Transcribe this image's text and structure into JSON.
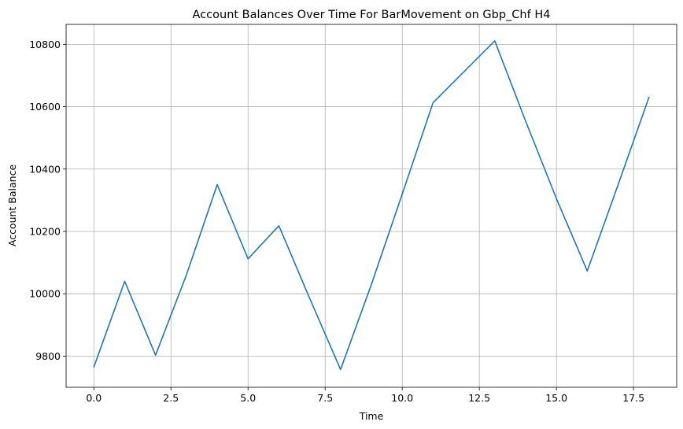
{
  "chart_data": {
    "type": "line",
    "title": "Account Balances Over Time For BarMovement on Gbp_Chf H4",
    "xlabel": "Time",
    "ylabel": "Account Balance",
    "xlim": [
      -0.9,
      18.9
    ],
    "ylim": [
      9700,
      10864
    ],
    "xticks": [
      0.0,
      2.5,
      5.0,
      7.5,
      10.0,
      12.5,
      15.0,
      17.5
    ],
    "xtick_labels": [
      "0.0",
      "2.5",
      "5.0",
      "7.5",
      "10.0",
      "12.5",
      "15.0",
      "17.5"
    ],
    "yticks": [
      9800,
      10000,
      10200,
      10400,
      10600,
      10800
    ],
    "ytick_labels": [
      "9800",
      "10000",
      "10200",
      "10400",
      "10600",
      "10800"
    ],
    "grid": true,
    "series": [
      {
        "color": "#1f77b4",
        "x": [
          0,
          1,
          2,
          3,
          4,
          5,
          6,
          7,
          8,
          9,
          10,
          11,
          12,
          13,
          14,
          15,
          16,
          17,
          18
        ],
        "y": [
          9765,
          10040,
          9803,
          10060,
          10350,
          10112,
          10218,
          9985,
          9757,
          10030,
          10320,
          10613,
          10712,
          10811,
          10554,
          10305,
          10073,
          10350,
          10630
        ]
      }
    ]
  }
}
